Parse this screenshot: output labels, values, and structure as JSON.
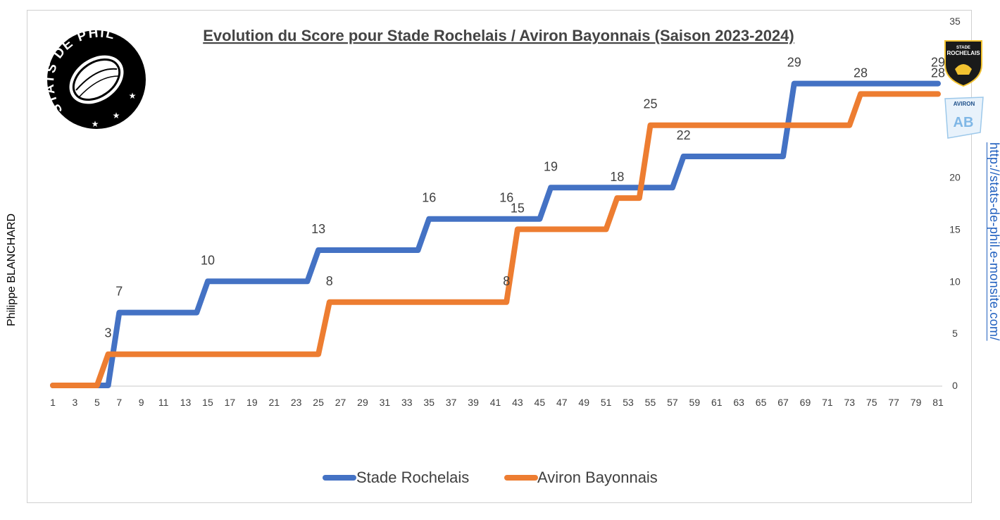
{
  "author": "Philippe BLANCHARD",
  "site_url": "http://stats-de-phil.e-monsite.com/",
  "logo": {
    "text": "STATS DE PHIL",
    "icon": "rugby-ball-icon"
  },
  "team_logos": [
    {
      "name": "STADE ROCHELAIS",
      "icon": "la-rochelle-shield-icon"
    },
    {
      "name": "AVIRON",
      "icon": "aviron-bayonnais-flag-icon"
    }
  ],
  "colors": {
    "rochelais": "#4472C4",
    "bayonnais": "#ED7D31"
  },
  "chart_data": {
    "type": "line",
    "step": true,
    "title": "Evolution du Score pour Stade Rochelais / Aviron Bayonnais (Saison 2023-2024)",
    "xlabel": "",
    "ylabel": "",
    "x_range": [
      1,
      81
    ],
    "x_tick_labels": [
      "1",
      "3",
      "5",
      "7",
      "9",
      "11",
      "13",
      "15",
      "17",
      "19",
      "21",
      "23",
      "25",
      "27",
      "29",
      "31",
      "33",
      "35",
      "37",
      "39",
      "41",
      "43",
      "45",
      "47",
      "49",
      "51",
      "53",
      "55",
      "57",
      "59",
      "61",
      "63",
      "65",
      "67",
      "69",
      "71",
      "73",
      "75",
      "77",
      "79",
      "81"
    ],
    "ylim": [
      0,
      35
    ],
    "y_ticks": [
      0,
      5,
      10,
      15,
      20,
      35
    ],
    "y_axis_side": "right",
    "grid": false,
    "legend": "bottom",
    "series": [
      {
        "name": "Stade Rochelais",
        "color": "#4472C4",
        "points": [
          [
            1,
            0
          ],
          [
            6,
            0
          ],
          [
            7,
            7
          ],
          [
            14,
            7
          ],
          [
            15,
            10
          ],
          [
            24,
            10
          ],
          [
            25,
            13
          ],
          [
            34,
            13
          ],
          [
            35,
            16
          ],
          [
            45,
            16
          ],
          [
            46,
            19
          ],
          [
            57,
            19
          ],
          [
            58,
            22
          ],
          [
            67,
            22
          ],
          [
            68,
            29
          ],
          [
            81,
            29
          ]
        ],
        "labels": [
          [
            7,
            7,
            "7"
          ],
          [
            15,
            10,
            "10"
          ],
          [
            25,
            13,
            "13"
          ],
          [
            35,
            16,
            "16"
          ],
          [
            42,
            16,
            "16"
          ],
          [
            46,
            19,
            "19"
          ],
          [
            58,
            22,
            "22"
          ],
          [
            68,
            29,
            "29"
          ],
          [
            81,
            29,
            "29"
          ]
        ]
      },
      {
        "name": "Aviron Bayonnais",
        "color": "#ED7D31",
        "points": [
          [
            1,
            0
          ],
          [
            5,
            0
          ],
          [
            6,
            3
          ],
          [
            25,
            3
          ],
          [
            26,
            8
          ],
          [
            42,
            8
          ],
          [
            43,
            15
          ],
          [
            51,
            15
          ],
          [
            52,
            18
          ],
          [
            54,
            18
          ],
          [
            55,
            25
          ],
          [
            73,
            25
          ],
          [
            74,
            28
          ],
          [
            81,
            28
          ]
        ],
        "labels": [
          [
            6,
            3,
            "3"
          ],
          [
            26,
            8,
            "8"
          ],
          [
            42,
            8,
            "8"
          ],
          [
            43,
            15,
            "15"
          ],
          [
            52,
            18,
            "18"
          ],
          [
            55,
            25,
            "25"
          ],
          [
            74,
            28,
            "28"
          ],
          [
            81,
            28,
            "28"
          ]
        ]
      }
    ]
  }
}
